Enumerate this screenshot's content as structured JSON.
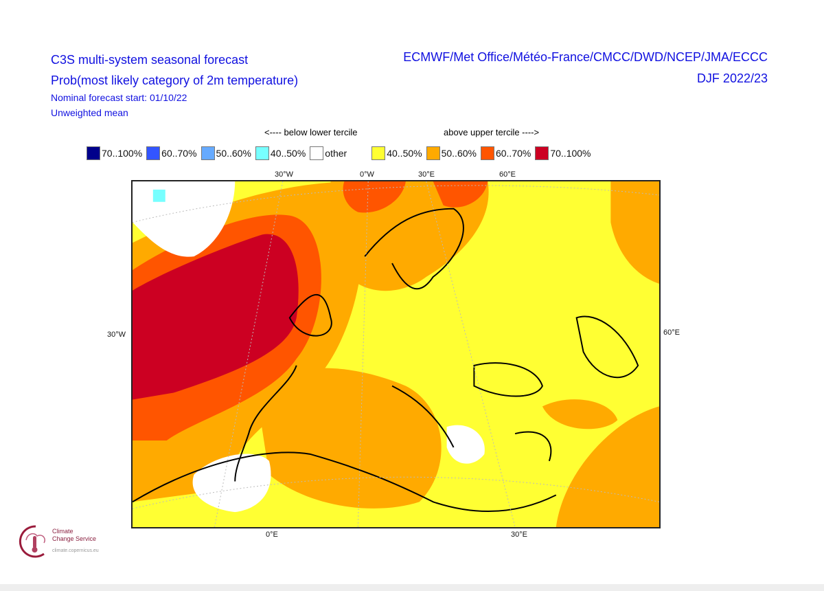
{
  "header": {
    "title": "C3S multi-system seasonal forecast",
    "subtitle": "Prob(most likely category of 2m temperature)",
    "forecast_start": "Nominal forecast start: 01/10/22",
    "weighting": "Unweighted mean",
    "systems": "ECMWF/Met Office/Météo-France/CMCC/DWD/NCEP/JMA/ECCC",
    "season": "DJF 2022/23"
  },
  "legend": {
    "below_label": "<---- below lower tercile",
    "above_label": "above upper tercile ---->",
    "items": [
      {
        "label": "70..100%",
        "color": "#00008b"
      },
      {
        "label": "60..70%",
        "color": "#3355ff"
      },
      {
        "label": "50..60%",
        "color": "#66aaff"
      },
      {
        "label": "40..50%",
        "color": "#77ffff"
      },
      {
        "label": "other",
        "color": "#ffffff"
      },
      {
        "label": "40..50%",
        "color": "#ffff33"
      },
      {
        "label": "50..60%",
        "color": "#ffaa00"
      },
      {
        "label": "60..70%",
        "color": "#ff5500"
      },
      {
        "label": "70..100%",
        "color": "#cc0022"
      }
    ]
  },
  "axes": {
    "top": [
      "30°W",
      "0°W",
      "30°E",
      "60°E"
    ],
    "left": "30°W",
    "right": "60°E",
    "bottom": [
      "0°E",
      "30°E"
    ]
  },
  "logo": {
    "line1": "Climate",
    "line2": "Change Service",
    "url": "climate.copernicus.eu"
  }
}
